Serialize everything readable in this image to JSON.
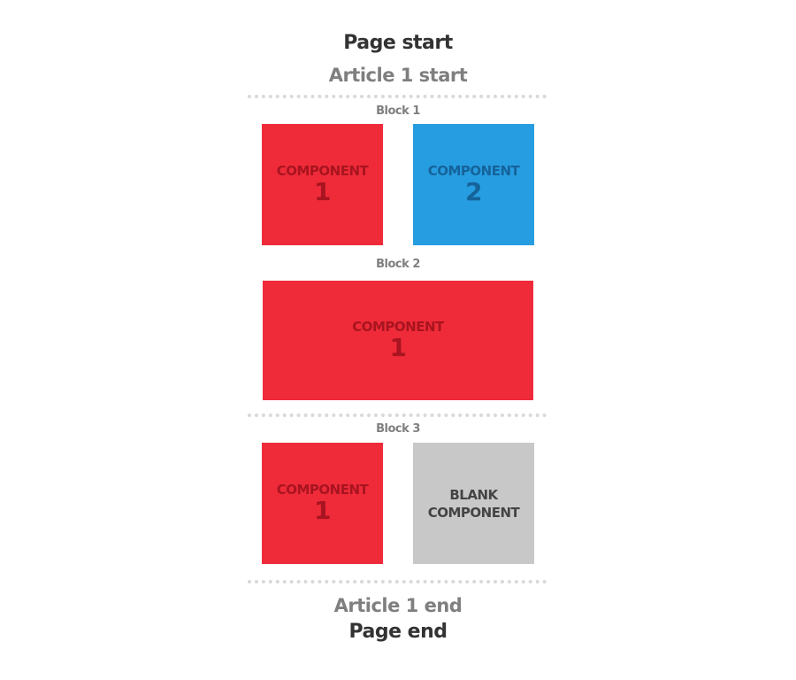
{
  "page": {
    "start_label": "Page start",
    "end_label": "Page end"
  },
  "article": {
    "start_label": "Article 1 start",
    "end_label": "Article 1 end"
  },
  "blocks": [
    {
      "label": "Block 1",
      "components": [
        {
          "word": "COMPONENT",
          "number": "1",
          "color": "#ef2b3a"
        },
        {
          "word": "COMPONENT",
          "number": "2",
          "color": "#279de1"
        }
      ]
    },
    {
      "label": "Block 2",
      "components": [
        {
          "word": "COMPONENT",
          "number": "1",
          "color": "#ef2b3a"
        }
      ]
    },
    {
      "label": "Block 3",
      "components": [
        {
          "word": "COMPONENT",
          "number": "1",
          "color": "#ef2b3a"
        },
        {
          "line1": "BLANK",
          "line2": "COMPONENT",
          "color": "#c8c8c8"
        }
      ]
    }
  ]
}
